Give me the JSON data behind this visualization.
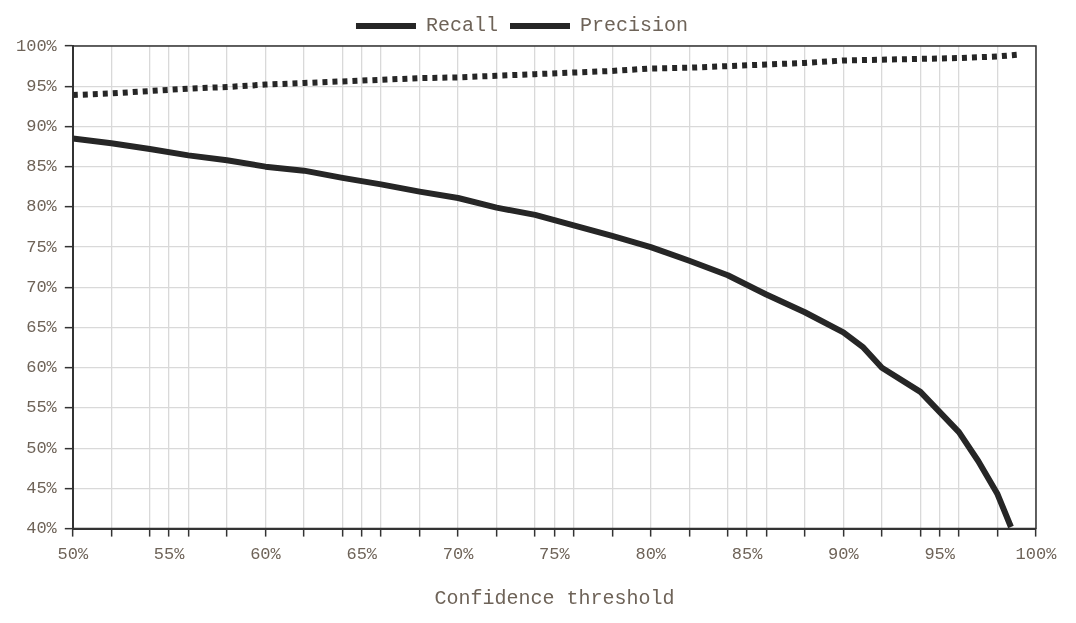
{
  "chart_data": {
    "type": "line",
    "xlabel": "Confidence threshold",
    "xlim": [
      50,
      100
    ],
    "ylim": [
      40,
      100
    ],
    "xticks": [
      {
        "value": 50,
        "label": "50%"
      },
      {
        "value": 52,
        "label": null
      },
      {
        "value": 54,
        "label": null
      },
      {
        "value": 55,
        "label": "55%"
      },
      {
        "value": 56,
        "label": null
      },
      {
        "value": 58,
        "label": null
      },
      {
        "value": 60,
        "label": "60%"
      },
      {
        "value": 62,
        "label": null
      },
      {
        "value": 64,
        "label": null
      },
      {
        "value": 65,
        "label": "65%"
      },
      {
        "value": 66,
        "label": null
      },
      {
        "value": 68,
        "label": null
      },
      {
        "value": 70,
        "label": "70%"
      },
      {
        "value": 72,
        "label": null
      },
      {
        "value": 74,
        "label": null
      },
      {
        "value": 75,
        "label": "75%"
      },
      {
        "value": 76,
        "label": null
      },
      {
        "value": 78,
        "label": null
      },
      {
        "value": 80,
        "label": "80%"
      },
      {
        "value": 82,
        "label": null
      },
      {
        "value": 84,
        "label": null
      },
      {
        "value": 85,
        "label": "85%"
      },
      {
        "value": 86,
        "label": null
      },
      {
        "value": 88,
        "label": null
      },
      {
        "value": 90,
        "label": "90%"
      },
      {
        "value": 92,
        "label": null
      },
      {
        "value": 94,
        "label": null
      },
      {
        "value": 95,
        "label": "95%"
      },
      {
        "value": 96,
        "label": null
      },
      {
        "value": 98,
        "label": null
      },
      {
        "value": 100,
        "label": "100%"
      }
    ],
    "yticks": [
      {
        "value": 40,
        "label": "40%"
      },
      {
        "value": 45,
        "label": "45%"
      },
      {
        "value": 50,
        "label": "50%"
      },
      {
        "value": 55,
        "label": "55%"
      },
      {
        "value": 60,
        "label": "60%"
      },
      {
        "value": 65,
        "label": "65%"
      },
      {
        "value": 70,
        "label": "70%"
      },
      {
        "value": 75,
        "label": "75%"
      },
      {
        "value": 80,
        "label": "80%"
      },
      {
        "value": 85,
        "label": "85%"
      },
      {
        "value": 90,
        "label": "90%"
      },
      {
        "value": 95,
        "label": "95%"
      },
      {
        "value": 100,
        "label": "100%"
      }
    ],
    "grid": true,
    "legend": "top",
    "marker": "none",
    "series": [
      {
        "name": "Recall",
        "color": "#262626",
        "line_style": "solid",
        "x": [
          50,
          52,
          54,
          56,
          58,
          60,
          62,
          64,
          66,
          68,
          70,
          72,
          74,
          76,
          78,
          80,
          82,
          84,
          86,
          88,
          90,
          91,
          92,
          94,
          96,
          97,
          98,
          98.7
        ],
        "values": [
          88.5,
          87.9,
          87.2,
          86.4,
          85.8,
          85.0,
          84.5,
          83.6,
          82.8,
          81.9,
          81.1,
          79.9,
          79.0,
          77.7,
          76.4,
          75.0,
          73.3,
          71.5,
          69.1,
          66.9,
          64.4,
          62.6,
          60.0,
          57.0,
          52.0,
          48.4,
          44.3,
          40.2
        ]
      },
      {
        "name": "Precision",
        "color": "#262626",
        "line_style": "dotted",
        "x": [
          50,
          52,
          54,
          56,
          58,
          60,
          62,
          64,
          66,
          68,
          70,
          72,
          74,
          76,
          78,
          80,
          82,
          84,
          86,
          88,
          90,
          92,
          94,
          96,
          98,
          99
        ],
        "values": [
          93.9,
          94.1,
          94.4,
          94.7,
          94.9,
          95.2,
          95.4,
          95.6,
          95.8,
          96.0,
          96.1,
          96.3,
          96.5,
          96.7,
          96.9,
          97.2,
          97.3,
          97.5,
          97.7,
          97.9,
          98.2,
          98.3,
          98.4,
          98.5,
          98.7,
          98.9
        ]
      }
    ]
  }
}
